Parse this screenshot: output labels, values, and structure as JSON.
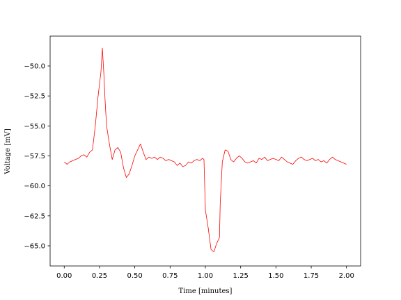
{
  "chart_data": {
    "type": "line",
    "xlabel": "Time [minutes]",
    "ylabel": "Voltage [mV]",
    "xlim": [
      -0.1,
      2.1
    ],
    "ylim": [
      -66.68,
      -47.51
    ],
    "xticks": [
      {
        "value": 0,
        "label": "0.00"
      },
      {
        "value": 0.25,
        "label": "0.25"
      },
      {
        "value": 0.5,
        "label": "0.50"
      },
      {
        "value": 0.75,
        "label": "0.75"
      },
      {
        "value": 1,
        "label": "1.00"
      },
      {
        "value": 1.25,
        "label": "1.25"
      },
      {
        "value": 1.5,
        "label": "1.50"
      },
      {
        "value": 1.75,
        "label": "1.75"
      },
      {
        "value": 2,
        "label": "2.00"
      }
    ],
    "yticks": [
      {
        "value": -65,
        "label": "−65.0"
      },
      {
        "value": -62.5,
        "label": "−62.5"
      },
      {
        "value": -60,
        "label": "−60.0"
      },
      {
        "value": -57.5,
        "label": "−57.5"
      },
      {
        "value": -55,
        "label": "−55.0"
      },
      {
        "value": -52.5,
        "label": "−52.5"
      },
      {
        "value": -50,
        "label": "−50.0"
      }
    ],
    "grid": false,
    "series": [
      {
        "color": "#ff0000",
        "x": [
          0.0,
          0.02,
          0.04,
          0.06,
          0.08,
          0.1,
          0.12,
          0.14,
          0.16,
          0.18,
          0.2,
          0.22,
          0.24,
          0.25,
          0.26,
          0.27,
          0.28,
          0.29,
          0.3,
          0.32,
          0.34,
          0.36,
          0.38,
          0.4,
          0.42,
          0.44,
          0.46,
          0.48,
          0.5,
          0.52,
          0.54,
          0.56,
          0.58,
          0.6,
          0.62,
          0.64,
          0.66,
          0.68,
          0.7,
          0.72,
          0.74,
          0.76,
          0.78,
          0.8,
          0.82,
          0.84,
          0.86,
          0.88,
          0.9,
          0.92,
          0.94,
          0.96,
          0.98,
          0.99,
          1.0,
          1.02,
          1.04,
          1.06,
          1.08,
          1.1,
          1.105,
          1.12,
          1.14,
          1.16,
          1.18,
          1.2,
          1.22,
          1.24,
          1.26,
          1.28,
          1.3,
          1.32,
          1.34,
          1.36,
          1.38,
          1.4,
          1.42,
          1.44,
          1.46,
          1.48,
          1.5,
          1.52,
          1.54,
          1.56,
          1.58,
          1.6,
          1.62,
          1.64,
          1.66,
          1.68,
          1.7,
          1.72,
          1.74,
          1.76,
          1.78,
          1.8,
          1.82,
          1.84,
          1.86,
          1.88,
          1.9,
          1.92,
          1.94,
          1.96,
          1.98,
          2.0
        ],
        "values": [
          -58.0,
          -58.2,
          -58.0,
          -57.9,
          -57.8,
          -57.7,
          -57.5,
          -57.4,
          -57.6,
          -57.2,
          -57.0,
          -55.0,
          -52.5,
          -51.5,
          -50.5,
          -48.5,
          -50.5,
          -53.0,
          -55.0,
          -56.5,
          -57.8,
          -57.0,
          -56.8,
          -57.2,
          -58.5,
          -59.3,
          -59.0,
          -58.3,
          -57.5,
          -57.0,
          -56.5,
          -57.2,
          -57.8,
          -57.6,
          -57.7,
          -57.6,
          -57.8,
          -57.6,
          -57.7,
          -57.9,
          -57.8,
          -57.9,
          -58.0,
          -58.3,
          -58.1,
          -58.4,
          -58.3,
          -58.0,
          -58.1,
          -57.9,
          -57.8,
          -57.9,
          -57.7,
          -57.8,
          -62.0,
          -63.5,
          -65.3,
          -65.5,
          -64.8,
          -64.3,
          -61.5,
          -58.0,
          -57.0,
          -57.1,
          -57.8,
          -58.0,
          -57.7,
          -57.5,
          -57.7,
          -58.0,
          -58.1,
          -58.0,
          -57.9,
          -58.1,
          -57.7,
          -57.8,
          -57.6,
          -57.9,
          -57.8,
          -57.7,
          -57.8,
          -57.9,
          -57.6,
          -57.8,
          -58.0,
          -58.1,
          -58.2,
          -57.9,
          -57.7,
          -57.6,
          -57.8,
          -57.9,
          -57.8,
          -57.7,
          -57.9,
          -57.8,
          -58.0,
          -57.9,
          -58.1,
          -57.8,
          -57.6,
          -57.8,
          -57.9,
          -58.0,
          -58.1,
          -58.2
        ]
      }
    ]
  }
}
